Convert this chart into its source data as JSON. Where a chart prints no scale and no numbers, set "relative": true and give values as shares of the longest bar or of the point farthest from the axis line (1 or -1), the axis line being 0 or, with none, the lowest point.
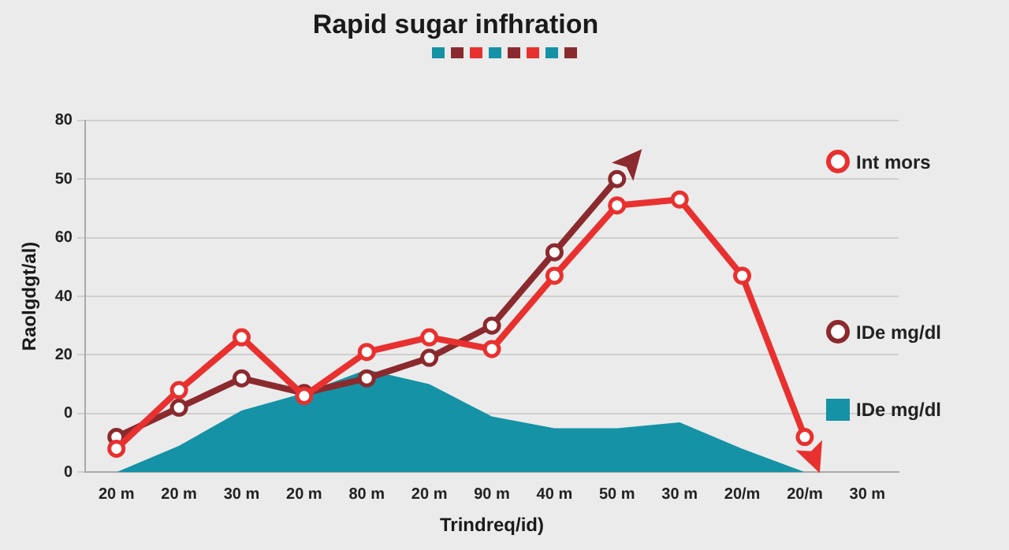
{
  "chart_data": {
    "type": "line",
    "title": "Rapid sugar infhration",
    "xlabel": "Trindreq/id)",
    "ylabel": "Raolgdgt/al)",
    "relative": true,
    "categories": [
      "20 m",
      "20 m",
      "30 m",
      "20 m",
      "80 m",
      "20 m",
      "90 m",
      "40 m",
      "50 m",
      "30 m",
      "20/m",
      "20/m",
      "30 m"
    ],
    "annotations": [
      "0",
      "0",
      "20",
      "40",
      "60",
      "50",
      "80"
    ],
    "grid": "y",
    "legend": "right",
    "marker": "circle",
    "line_style": "solid",
    "series": [
      {
        "name": "IDe mg/dl",
        "type": "area",
        "color": "#1592a5",
        "marker": "none",
        "values": [
          0,
          0.09,
          0.21,
          0.27,
          0.35,
          0.3,
          0.19,
          0.15,
          0.15,
          0.17,
          0.08,
          0,
          null
        ]
      },
      {
        "name": "IDe mg/dl",
        "type": "line",
        "color": "#8b2a2e",
        "values": [
          0.12,
          0.22,
          0.32,
          0.27,
          0.32,
          0.39,
          0.5,
          0.75,
          1,
          null,
          null,
          null,
          null
        ]
      },
      {
        "name": "Int mors",
        "type": "line",
        "color": "#e8312f",
        "values": [
          0.08,
          0.28,
          0.46,
          0.26,
          0.41,
          0.46,
          0.42,
          0.67,
          0.91,
          0.93,
          0.67,
          0.12,
          null
        ]
      }
    ]
  }
}
